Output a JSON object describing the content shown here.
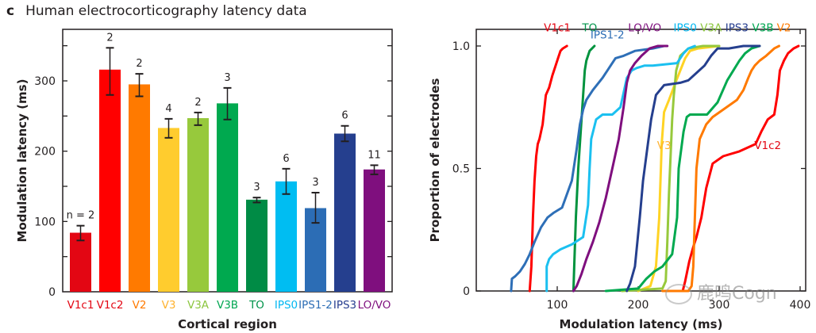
{
  "panel": {
    "letter": "c",
    "title": "Human electrocorticography latency data"
  },
  "watermark": {
    "text": "鹿鸣Cogn",
    "icon": "wechat-icon"
  },
  "chart_data": [
    {
      "type": "bar",
      "title": "Human electrocorticography latency data",
      "xlabel": "Cortical region",
      "ylabel": "Modulation latency (ms)",
      "ylim": [
        0,
        370
      ],
      "yticks": [
        0,
        100,
        200,
        300
      ],
      "yticks_minor": [
        50,
        150,
        250,
        350
      ],
      "grid": false,
      "categories": [
        "V1c1",
        "V1c2",
        "V2",
        "V3",
        "V3A",
        "V3B",
        "TO",
        "IPS0",
        "IPS1-2",
        "IPS3",
        "LO/VO"
      ],
      "values": [
        84,
        316,
        295,
        233,
        247,
        268,
        131,
        157,
        119,
        225,
        174
      ],
      "error_low": [
        73,
        280,
        278,
        219,
        237,
        245,
        127,
        139,
        98,
        214,
        167
      ],
      "error_high": [
        94,
        347,
        310,
        246,
        255,
        290,
        134,
        175,
        141,
        236,
        180
      ],
      "n_labels": [
        "n = 2",
        "2",
        "2",
        "4",
        "2",
        "3",
        "3",
        "6",
        "3",
        "6",
        "11"
      ],
      "colors": [
        "#e30613",
        "#ff0000",
        "#ff7a00",
        "#ffcc2e",
        "#97c93c",
        "#00a94f",
        "#008b45",
        "#00bdf2",
        "#2c6db5",
        "#253f8e",
        "#7f0f7e"
      ],
      "label_colors": [
        "#e30613",
        "#e30613",
        "#ff7a00",
        "#ffb22e",
        "#8cc63f",
        "#00a651",
        "#00934a",
        "#00b7f1",
        "#2c6db5",
        "#263d8f",
        "#7f0f7e"
      ]
    },
    {
      "type": "line",
      "title": "",
      "xlabel": "Modulation latency (ms)",
      "ylabel": "Proportion of electrodes",
      "xlim": [
        0,
        405
      ],
      "ylim": [
        0,
        1.05
      ],
      "xticks": [
        100,
        200,
        300,
        400
      ],
      "yticks": [
        0,
        0.5,
        1.0
      ],
      "ytick_labels": [
        "0",
        "0.5",
        "1.0"
      ],
      "grid": false,
      "series": [
        {
          "name": "V1c1",
          "color": "#ff0000",
          "x": [
            66,
            68,
            70,
            72,
            74,
            76,
            78,
            82,
            86,
            90,
            94,
            98,
            101,
            104,
            107,
            112
          ],
          "y": [
            0,
            0.1,
            0.3,
            0.45,
            0.55,
            0.6,
            0.62,
            0.68,
            0.8,
            0.83,
            0.88,
            0.92,
            0.95,
            0.98,
            0.99,
            1.0
          ]
        },
        {
          "name": "V1c2",
          "color": "#ff0000",
          "x": [
            255,
            258,
            263,
            268,
            272,
            278,
            284,
            292,
            305,
            325,
            345,
            352,
            360,
            368,
            372,
            375,
            380,
            385,
            392,
            398
          ],
          "y": [
            0,
            0.04,
            0.12,
            0.18,
            0.22,
            0.3,
            0.42,
            0.52,
            0.55,
            0.57,
            0.6,
            0.65,
            0.7,
            0.72,
            0.8,
            0.9,
            0.94,
            0.97,
            0.99,
            1.0
          ]
        },
        {
          "name": "V2",
          "color": "#ff7a00",
          "x": [
            230,
            262,
            266,
            268,
            270,
            272,
            276,
            284,
            292,
            322,
            330,
            336,
            340,
            344,
            350,
            358,
            368,
            374
          ],
          "y": [
            0,
            0,
            0.02,
            0.1,
            0.3,
            0.5,
            0.62,
            0.68,
            0.71,
            0.78,
            0.82,
            0.87,
            0.9,
            0.92,
            0.94,
            0.96,
            0.99,
            1.0
          ]
        },
        {
          "name": "V3",
          "color": "#ffd324",
          "x": [
            200,
            215,
            222,
            226,
            228,
            229,
            232,
            238,
            246,
            252,
            258,
            264,
            274,
            300
          ],
          "y": [
            0,
            0.02,
            0.1,
            0.3,
            0.5,
            0.6,
            0.73,
            0.78,
            0.85,
            0.9,
            0.95,
            0.98,
            0.99,
            1.0
          ]
        },
        {
          "name": "V3A",
          "color": "#97c93c",
          "x": [
            180,
            230,
            234,
            236,
            238,
            240,
            242,
            244,
            247,
            252,
            262,
            280,
            300
          ],
          "y": [
            0,
            0.01,
            0.04,
            0.2,
            0.4,
            0.55,
            0.7,
            0.8,
            0.9,
            0.96,
            0.99,
            1.0,
            1.0
          ]
        },
        {
          "name": "V3B",
          "color": "#00a94f",
          "x": [
            160,
            200,
            210,
            220,
            230,
            242,
            248,
            250,
            256,
            260,
            264,
            285,
            298,
            310,
            325,
            332,
            340,
            350
          ],
          "y": [
            0,
            0.01,
            0.05,
            0.08,
            0.1,
            0.15,
            0.3,
            0.5,
            0.65,
            0.71,
            0.72,
            0.72,
            0.77,
            0.86,
            0.94,
            0.97,
            0.99,
            1.0
          ]
        },
        {
          "name": "TO",
          "color": "#00933e",
          "x": [
            120,
            121,
            123,
            126,
            130,
            134,
            136,
            140,
            146
          ],
          "y": [
            0,
            0.1,
            0.3,
            0.5,
            0.7,
            0.9,
            0.94,
            0.98,
            1.0
          ]
        },
        {
          "name": "IPS0",
          "color": "#1bc0f0",
          "x": [
            87,
            87,
            90,
            95,
            104,
            118,
            132,
            138,
            140,
            142,
            148,
            156,
            168,
            178,
            186,
            192,
            198,
            208,
            218,
            248,
            256,
            262,
            270
          ],
          "y": [
            0,
            0.1,
            0.13,
            0.15,
            0.17,
            0.19,
            0.22,
            0.35,
            0.5,
            0.62,
            0.7,
            0.72,
            0.72,
            0.75,
            0.87,
            0.9,
            0.91,
            0.92,
            0.92,
            0.93,
            0.97,
            0.99,
            1.0
          ]
        },
        {
          "name": "IPS1-2",
          "color": "#2e6fb7",
          "x": [
            43,
            44,
            48,
            54,
            60,
            66,
            72,
            80,
            88,
            96,
            106,
            118,
            124,
            128,
            132,
            136,
            144,
            156,
            166,
            172,
            182,
            196,
            218,
            232
          ],
          "y": [
            0,
            0.05,
            0.06,
            0.08,
            0.11,
            0.15,
            0.2,
            0.26,
            0.3,
            0.32,
            0.34,
            0.45,
            0.58,
            0.68,
            0.74,
            0.78,
            0.82,
            0.87,
            0.92,
            0.95,
            0.96,
            0.98,
            0.99,
            1.0
          ]
        },
        {
          "name": "IPS3",
          "color": "#253f8e",
          "x": [
            186,
            190,
            196,
            202,
            206,
            212,
            216,
            222,
            232,
            252,
            262,
            272,
            282,
            290,
            298,
            312,
            330,
            350
          ],
          "y": [
            0,
            0.03,
            0.1,
            0.3,
            0.45,
            0.6,
            0.7,
            0.8,
            0.84,
            0.85,
            0.86,
            0.89,
            0.92,
            0.96,
            0.99,
            0.99,
            1.0,
            1.0
          ]
        },
        {
          "name": "LO/VO",
          "color": "#7f0f7e",
          "x": [
            120,
            124,
            130,
            136,
            144,
            152,
            160,
            168,
            176,
            182,
            186,
            190,
            196,
            204,
            214,
            224,
            236
          ],
          "y": [
            0,
            0.02,
            0.07,
            0.13,
            0.2,
            0.28,
            0.38,
            0.5,
            0.62,
            0.75,
            0.85,
            0.9,
            0.93,
            0.96,
            0.99,
            1.0,
            1.0
          ]
        }
      ],
      "line_labels": [
        {
          "text": "V1c1",
          "color": "#e30613",
          "at_x": 100,
          "at_y": 1.06
        },
        {
          "text": "TO",
          "color": "#00934a",
          "at_x": 140,
          "at_y": 1.06
        },
        {
          "text": "IPS1-2",
          "color": "#2c6db5",
          "at_x": 162,
          "at_y": 1.03
        },
        {
          "text": "LO/VO",
          "color": "#7f0f7e",
          "at_x": 208,
          "at_y": 1.06
        },
        {
          "text": "IPS0",
          "color": "#00b7f1",
          "at_x": 258,
          "at_y": 1.06
        },
        {
          "text": "V3A",
          "color": "#8cc63f",
          "at_x": 290,
          "at_y": 1.06
        },
        {
          "text": "IPS3",
          "color": "#263d8f",
          "at_x": 322,
          "at_y": 1.06
        },
        {
          "text": "V3B",
          "color": "#00a651",
          "at_x": 354,
          "at_y": 1.06
        },
        {
          "text": "V2",
          "color": "#ff7a00",
          "at_x": 380,
          "at_y": 1.06
        },
        {
          "text": "V3",
          "color": "#ffb22e",
          "at_x": 232,
          "at_y": 0.58
        },
        {
          "text": "V1c2",
          "color": "#e30613",
          "at_x": 360,
          "at_y": 0.58
        }
      ]
    }
  ]
}
